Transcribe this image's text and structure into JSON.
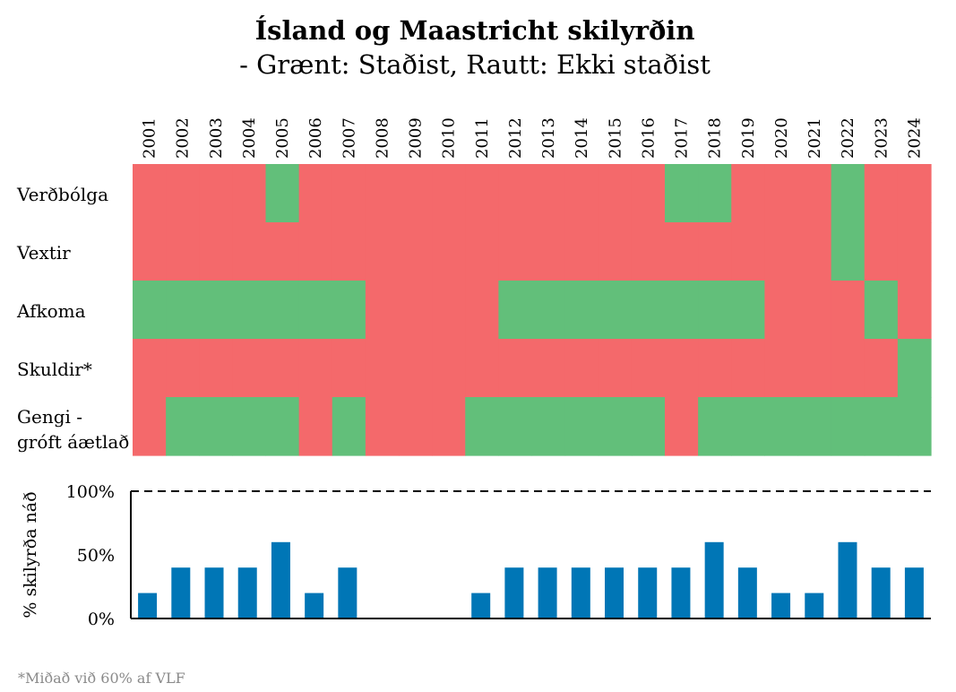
{
  "colors": {
    "met": "#62bf7a",
    "not_met": "#f4696b",
    "bar": "#0076b6",
    "axis": "#000000",
    "footnote": "#8a8a8a"
  },
  "chart_data": [
    {
      "type": "heatmap",
      "title": "Ísland og Maastricht skilyrðin",
      "subtitle": "- Grænt: Staðist, Rautt: Ekki staðist",
      "years": [
        "2001",
        "2002",
        "2003",
        "2004",
        "2005",
        "2006",
        "2007",
        "2008",
        "2009",
        "2010",
        "2011",
        "2012",
        "2013",
        "2014",
        "2015",
        "2016",
        "2017",
        "2018",
        "2019",
        "2020",
        "2021",
        "2022",
        "2023",
        "2024"
      ],
      "rows": [
        {
          "label": [
            "Verðbólga"
          ],
          "met": [
            0,
            0,
            0,
            0,
            1,
            0,
            0,
            0,
            0,
            0,
            0,
            0,
            0,
            0,
            0,
            0,
            1,
            1,
            0,
            0,
            0,
            1,
            0,
            0
          ]
        },
        {
          "label": [
            "Vextir"
          ],
          "met": [
            0,
            0,
            0,
            0,
            0,
            0,
            0,
            0,
            0,
            0,
            0,
            0,
            0,
            0,
            0,
            0,
            0,
            0,
            0,
            0,
            0,
            1,
            0,
            0
          ]
        },
        {
          "label": [
            "Afkoma"
          ],
          "met": [
            1,
            1,
            1,
            1,
            1,
            1,
            1,
            0,
            0,
            0,
            0,
            1,
            1,
            1,
            1,
            1,
            1,
            1,
            1,
            0,
            0,
            0,
            1,
            0
          ]
        },
        {
          "label": [
            "Skuldir*"
          ],
          "met": [
            0,
            0,
            0,
            0,
            0,
            0,
            0,
            0,
            0,
            0,
            0,
            0,
            0,
            0,
            0,
            0,
            0,
            0,
            0,
            0,
            0,
            0,
            0,
            1
          ]
        },
        {
          "label": [
            "Gengi -",
            "gróft áætlað"
          ],
          "met": [
            0,
            1,
            1,
            1,
            1,
            0,
            1,
            0,
            0,
            0,
            1,
            1,
            1,
            1,
            1,
            1,
            0,
            1,
            1,
            1,
            1,
            1,
            1,
            1
          ]
        }
      ],
      "legend": [
        "Grænt: Staðist",
        "Rautt: Ekki staðist"
      ]
    },
    {
      "type": "bar",
      "categories": [
        "2001",
        "2002",
        "2003",
        "2004",
        "2005",
        "2006",
        "2007",
        "2008",
        "2009",
        "2010",
        "2011",
        "2012",
        "2013",
        "2014",
        "2015",
        "2016",
        "2017",
        "2018",
        "2019",
        "2020",
        "2021",
        "2022",
        "2023",
        "2024"
      ],
      "values": [
        20,
        40,
        40,
        40,
        60,
        20,
        40,
        0,
        0,
        0,
        20,
        40,
        40,
        40,
        40,
        40,
        40,
        60,
        40,
        20,
        20,
        60,
        40,
        40
      ],
      "ylabel": "% skilyrða náð",
      "ylim": [
        0,
        100
      ],
      "yticks": [
        "0%",
        "50%",
        "100%"
      ],
      "reference_line": {
        "value": 100,
        "style": "dashed"
      },
      "grid": false
    }
  ],
  "footnote": "*Miðað við 60% af VLF"
}
